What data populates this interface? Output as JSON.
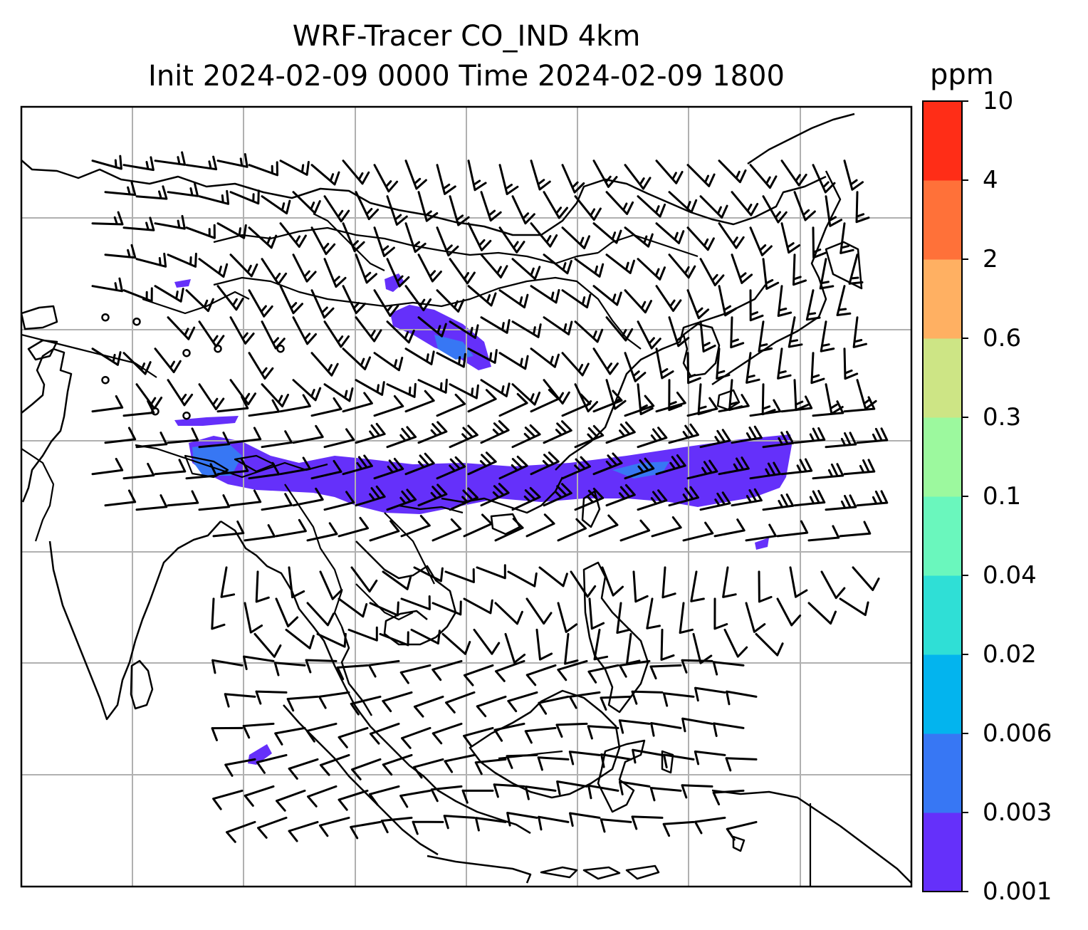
{
  "title": {
    "line1": "WRF-Tracer CO_IND 4km",
    "line2": "Init 2024-02-09 0000 Time 2024-02-09 1800"
  },
  "colorbar": {
    "unit": "ppm",
    "ticks": [
      "0.001",
      "0.003",
      "0.006",
      "0.02",
      "0.04",
      "0.1",
      "0.3",
      "0.6",
      "2",
      "4",
      "10"
    ],
    "colors": [
      "#6530fa",
      "#3777f4",
      "#03b4ee",
      "#2fdfd6",
      "#6af7bd",
      "#9cf99e",
      "#cde585",
      "#ffb062",
      "#ff7139",
      "#ff2d17"
    ]
  },
  "map": {
    "frame_color": "#000000",
    "grid_color": "#b0b0b0",
    "plume_color": "#6530fa",
    "plume_hotspot_color": "#3777f4",
    "barb_color": "#000000"
  }
}
